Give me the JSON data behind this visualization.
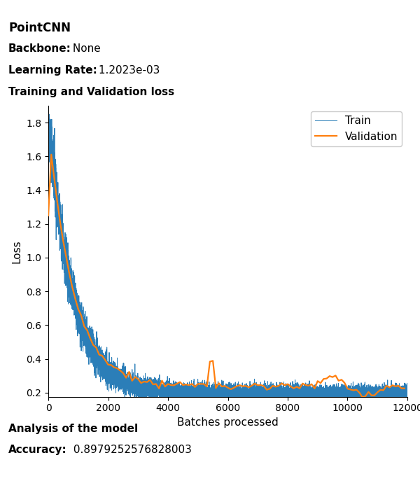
{
  "title": "PointCNN",
  "backbone_label": "Backbone:",
  "backbone_value": " None",
  "lr_label": "Learning Rate:",
  "lr_value": " 1.2023e-03",
  "section_label": "Training and Validation loss",
  "analysis_label": "Analysis of the model",
  "accuracy_label": "Accuracy:",
  "accuracy_value": " 0.8979252576828003",
  "xlabel": "Batches processed",
  "ylabel": "Loss",
  "train_color": "#1f77b4",
  "val_color": "#ff7f0e",
  "train_label": "Train",
  "val_label": "Validation",
  "xlim": [
    0,
    12000
  ],
  "ylim": [
    0.175,
    1.9
  ],
  "seed": 42,
  "fig_width": 6.0,
  "fig_height": 6.87,
  "dpi": 100
}
